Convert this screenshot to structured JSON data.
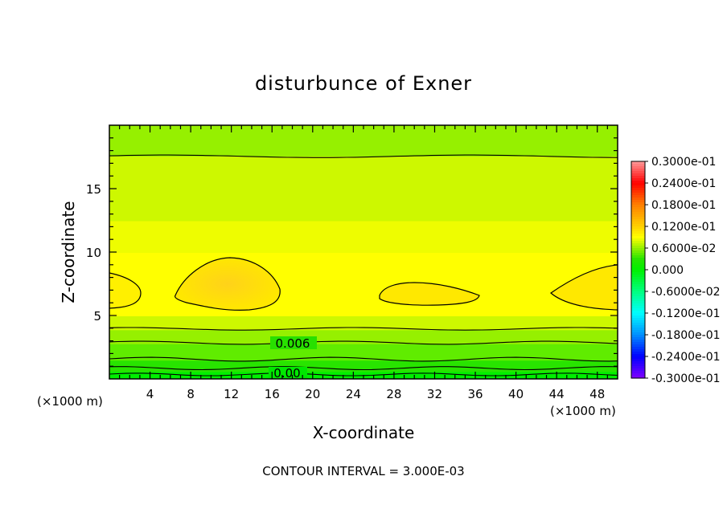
{
  "chart_data": {
    "type": "heatmap",
    "title": "disturbunce of Exner",
    "xlabel": "X-coordinate",
    "ylabel": "Z-coordinate",
    "x_unit_left": "(×1000 m)",
    "x_unit_right": "(×1000 m)",
    "xlim": [
      0,
      50
    ],
    "ylim": [
      0,
      20
    ],
    "x_ticks": [
      4,
      8,
      12,
      16,
      20,
      24,
      28,
      32,
      36,
      40,
      44,
      48
    ],
    "y_ticks": [
      5,
      10,
      15
    ],
    "contour_interval_text": "CONTOUR INTERVAL = 3.000E-03",
    "contour_labels": [
      {
        "text": "0.006",
        "x": 22,
        "z": 2.8
      },
      {
        "text": "0.00",
        "x": 22,
        "z": 0.4
      }
    ],
    "colorbar": {
      "labels": [
        "0.3000e-01",
        "0.2400e-01",
        "0.1800e-01",
        "0.1200e-01",
        "0.6000e-02",
        "0.000",
        "-0.6000e-02",
        "-0.1200e-01",
        "-0.1800e-01",
        "-0.2400e-01",
        "-0.3000e-01"
      ],
      "colors": [
        "#ff9a9a",
        "#ff0000",
        "#ff7f00",
        "#ffd000",
        "#ffff00",
        "#00ff00",
        "#00ff7f",
        "#00ffff",
        "#0090ff",
        "#0000ff",
        "#7f00ff"
      ],
      "range": [
        -0.03,
        0.03
      ]
    },
    "field_description_values": {
      "bands_by_height_z": [
        {
          "z_from": 0,
          "z_to": 0.6,
          "value": 0.0
        },
        {
          "z_from": 0.6,
          "z_to": 1.5,
          "value": 0.003
        },
        {
          "z_from": 1.5,
          "z_to": 2.8,
          "value": 0.0045
        },
        {
          "z_from": 2.8,
          "z_to": 3.9,
          "value": 0.006
        },
        {
          "z_from": 3.9,
          "z_to": 5.0,
          "value": 0.0075
        },
        {
          "z_from": 5.0,
          "z_to": 10.0,
          "value": 0.009
        },
        {
          "z_from": 10.0,
          "z_to": 12.5,
          "value": 0.0085
        },
        {
          "z_from": 12.5,
          "z_to": 17.6,
          "value": 0.0075
        },
        {
          "z_from": 17.6,
          "z_to": 20.0,
          "value": 0.006
        }
      ]
    },
    "grid": false,
    "legend_placement": "right"
  }
}
